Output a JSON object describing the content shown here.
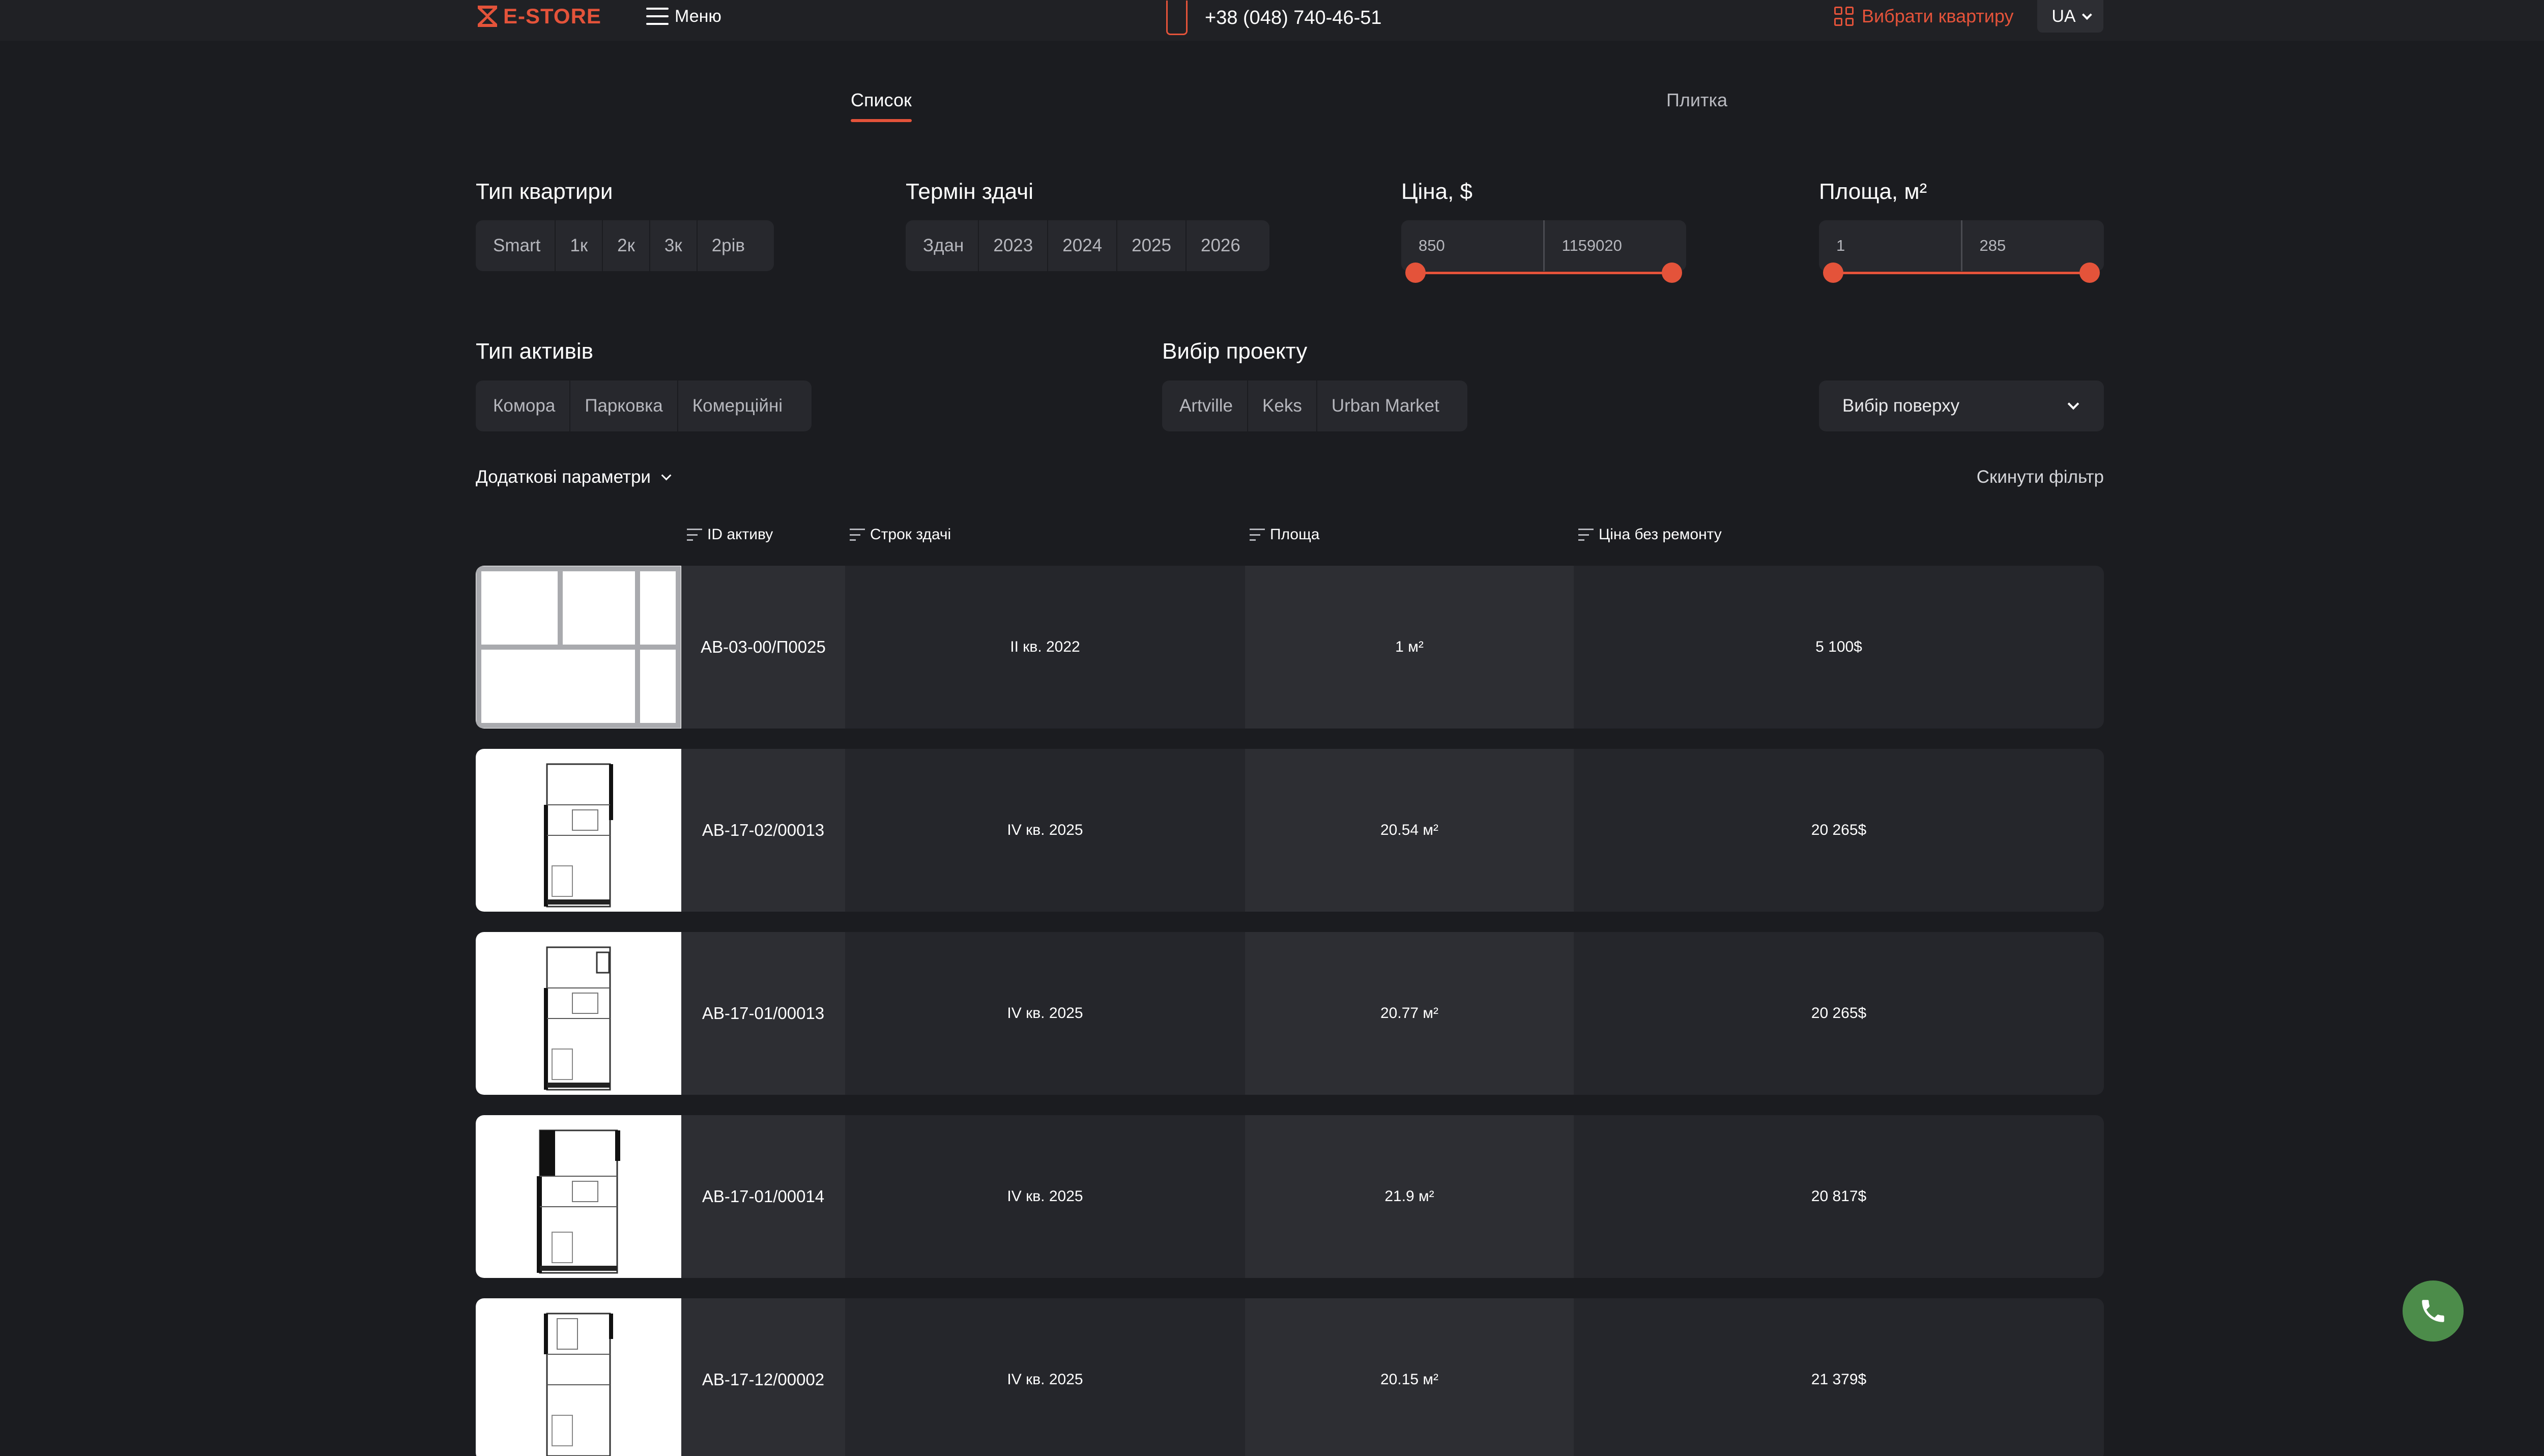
{
  "header": {
    "logo_text": "E-STORE",
    "menu_label": "Меню",
    "phone": "+38 (048) 740-46-51",
    "choose_apartment": "Вибрати квартиру",
    "language": "UA"
  },
  "view_tabs": {
    "list": "Список",
    "tiles": "Плитка"
  },
  "filters": {
    "apartment_type": {
      "label": "Тип квартири",
      "options": [
        "Smart",
        "1к",
        "2к",
        "3к",
        "2рів"
      ]
    },
    "delivery_term": {
      "label": "Термін здачі",
      "options": [
        "Здан",
        "2023",
        "2024",
        "2025",
        "2026"
      ]
    },
    "price": {
      "label": "Ціна, $",
      "min": "850",
      "max": "1159020"
    },
    "area": {
      "label": "Площа, м²",
      "min": "1",
      "max": "285"
    },
    "asset_type": {
      "label": "Тип активів",
      "options": [
        "Комора",
        "Парковка",
        "Комерційні"
      ]
    },
    "project": {
      "label": "Вибір проекту",
      "options": [
        "Artville",
        "Keks",
        "Urban Market"
      ]
    },
    "floor": {
      "placeholder": "Вибір поверху"
    },
    "extra_params": "Додаткові параметри",
    "reset": "Скинути фільтр"
  },
  "table": {
    "columns": [
      "ID активу",
      "Строк здачі",
      "Площа",
      "Ціна без ремонту"
    ],
    "rows": [
      {
        "id": "AB-03-00/П0025",
        "date": "II кв. 2022",
        "area": "1 м²",
        "price": "5 100$"
      },
      {
        "id": "AB-17-02/00013",
        "date": "IV кв. 2025",
        "area": "20.54 м²",
        "price": "20 265$"
      },
      {
        "id": "AB-17-01/00013",
        "date": "IV кв. 2025",
        "area": "20.77 м²",
        "price": "20 265$"
      },
      {
        "id": "AB-17-01/00014",
        "date": "IV кв. 2025",
        "area": "21.9 м²",
        "price": "20 817$"
      },
      {
        "id": "AB-17-12/00002",
        "date": "IV кв. 2025",
        "area": "20.15 м²",
        "price": "21 379$"
      }
    ]
  },
  "colors": {
    "accent": "#e4533a",
    "background": "#1b1c20",
    "call_button": "#4c8c4a"
  },
  "icons": [
    "logo-icon",
    "burger-icon",
    "phone-icon",
    "grid-icon",
    "chevron-down-icon",
    "sort-icon",
    "floor-plan-icon",
    "call-icon"
  ]
}
